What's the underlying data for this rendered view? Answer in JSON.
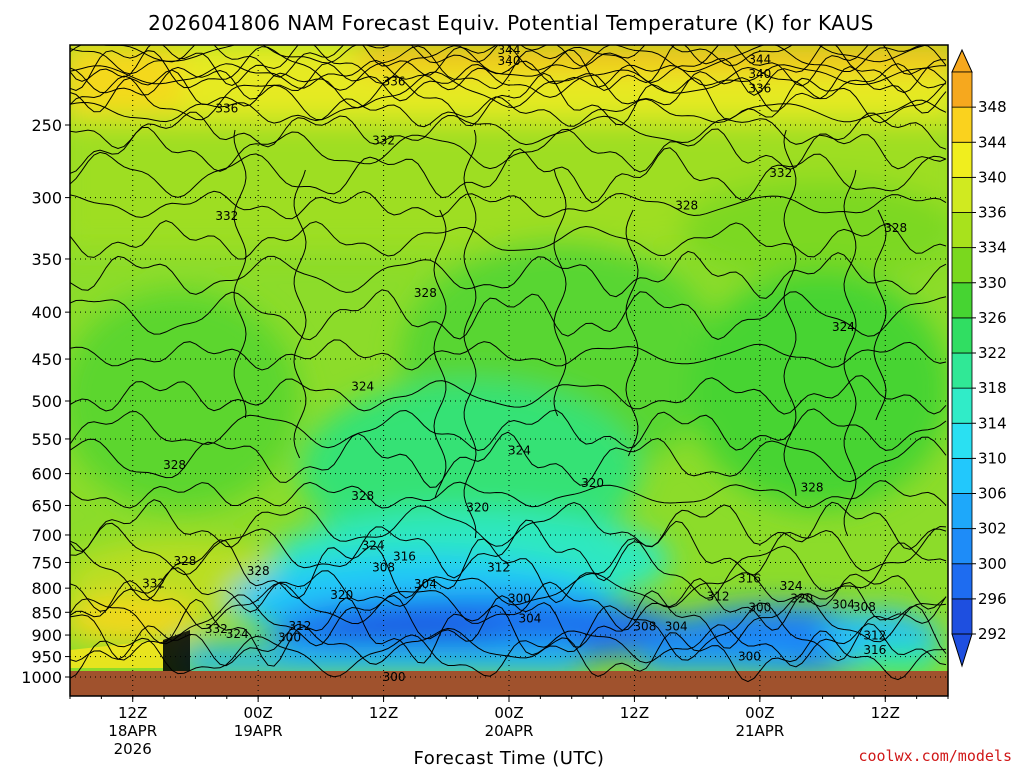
{
  "chart_data": {
    "type": "heatmap",
    "title": "2026041806 NAM Forecast Equiv. Potential Temperature (K) for KAUS",
    "xlabel": "Forecast Time (UTC)",
    "ylabel": "",
    "y_scale": "log",
    "y_inverted": true,
    "ylim": [
      1000,
      200
    ],
    "y_ticks": [
      250,
      300,
      350,
      400,
      450,
      500,
      550,
      600,
      650,
      700,
      750,
      800,
      850,
      900,
      950,
      1000
    ],
    "x_ticks": [
      {
        "hour": 6,
        "line1": "12Z",
        "line2": "18APR",
        "line3": "2026"
      },
      {
        "hour": 18,
        "line1": "00Z",
        "line2": "19APR",
        "line3": ""
      },
      {
        "hour": 30,
        "line1": "12Z",
        "line2": "",
        "line3": ""
      },
      {
        "hour": 42,
        "line1": "00Z",
        "line2": "20APR",
        "line3": ""
      },
      {
        "hour": 54,
        "line1": "12Z",
        "line2": "",
        "line3": ""
      },
      {
        "hour": 66,
        "line1": "00Z",
        "line2": "21APR",
        "line3": ""
      },
      {
        "hour": 78,
        "line1": "12Z",
        "line2": "",
        "line3": ""
      }
    ],
    "xlim": [
      0,
      84
    ],
    "grid": true,
    "colorbar": {
      "levels": [
        292,
        296,
        300,
        302,
        306,
        310,
        314,
        318,
        322,
        326,
        330,
        334,
        336,
        340,
        344,
        348
      ],
      "colors": [
        "#1e4fe0",
        "#1e6cf0",
        "#1e8cf8",
        "#1ea8fa",
        "#22c8fc",
        "#2ae0f2",
        "#30ecc8",
        "#30e896",
        "#30de62",
        "#46d432",
        "#7ad81e",
        "#a8e21c",
        "#d0ea20",
        "#f0ee1e",
        "#fad21e",
        "#f6a81e"
      ]
    },
    "contour_labels": [
      {
        "text": "344",
        "p": 207,
        "h": 42
      },
      {
        "text": "340",
        "p": 213,
        "h": 42
      },
      {
        "text": "344",
        "p": 212,
        "h": 66
      },
      {
        "text": "340",
        "p": 220,
        "h": 66
      },
      {
        "text": "336",
        "p": 228,
        "h": 66
      },
      {
        "text": "336",
        "p": 224,
        "h": 31
      },
      {
        "text": "336",
        "p": 240,
        "h": 15
      },
      {
        "text": "332",
        "p": 260,
        "h": 30
      },
      {
        "text": "332",
        "p": 282,
        "h": 68
      },
      {
        "text": "332",
        "p": 314,
        "h": 15
      },
      {
        "text": "328",
        "p": 306,
        "h": 59
      },
      {
        "text": "328",
        "p": 324,
        "h": 79
      },
      {
        "text": "328",
        "p": 381,
        "h": 34
      },
      {
        "text": "324",
        "p": 415,
        "h": 74
      },
      {
        "text": "324",
        "p": 482,
        "h": 28
      },
      {
        "text": "324",
        "p": 566,
        "h": 43
      },
      {
        "text": "328",
        "p": 587,
        "h": 10
      },
      {
        "text": "320",
        "p": 614,
        "h": 50
      },
      {
        "text": "328",
        "p": 621,
        "h": 71
      },
      {
        "text": "328",
        "p": 635,
        "h": 28
      },
      {
        "text": "320",
        "p": 653,
        "h": 39
      },
      {
        "text": "324",
        "p": 719,
        "h": 29
      },
      {
        "text": "316",
        "p": 739,
        "h": 32
      },
      {
        "text": "328",
        "p": 747,
        "h": 11
      },
      {
        "text": "308",
        "p": 760,
        "h": 30
      },
      {
        "text": "312",
        "p": 760,
        "h": 41
      },
      {
        "text": "328",
        "p": 766,
        "h": 18
      },
      {
        "text": "316",
        "p": 781,
        "h": 65
      },
      {
        "text": "332",
        "p": 791,
        "h": 8
      },
      {
        "text": "304",
        "p": 792,
        "h": 34
      },
      {
        "text": "324",
        "p": 796,
        "h": 69
      },
      {
        "text": "320",
        "p": 814,
        "h": 26
      },
      {
        "text": "300",
        "p": 821,
        "h": 43
      },
      {
        "text": "312",
        "p": 817,
        "h": 62
      },
      {
        "text": "320",
        "p": 821,
        "h": 70
      },
      {
        "text": "304",
        "p": 834,
        "h": 74
      },
      {
        "text": "300",
        "p": 840,
        "h": 66
      },
      {
        "text": "308",
        "p": 839,
        "h": 76
      },
      {
        "text": "304",
        "p": 863,
        "h": 44
      },
      {
        "text": "308",
        "p": 881,
        "h": 55
      },
      {
        "text": "304",
        "p": 881,
        "h": 58
      },
      {
        "text": "312",
        "p": 880,
        "h": 22
      },
      {
        "text": "332",
        "p": 886,
        "h": 14
      },
      {
        "text": "324",
        "p": 898,
        "h": 16
      },
      {
        "text": "300",
        "p": 906,
        "h": 21
      },
      {
        "text": "312",
        "p": 901,
        "h": 77
      },
      {
        "text": "316",
        "p": 935,
        "h": 77
      },
      {
        "text": "300",
        "p": 950,
        "h": 65
      },
      {
        "text": "300",
        "p": 1000,
        "h": 31
      }
    ]
  },
  "credit": "coolwx.com/models"
}
